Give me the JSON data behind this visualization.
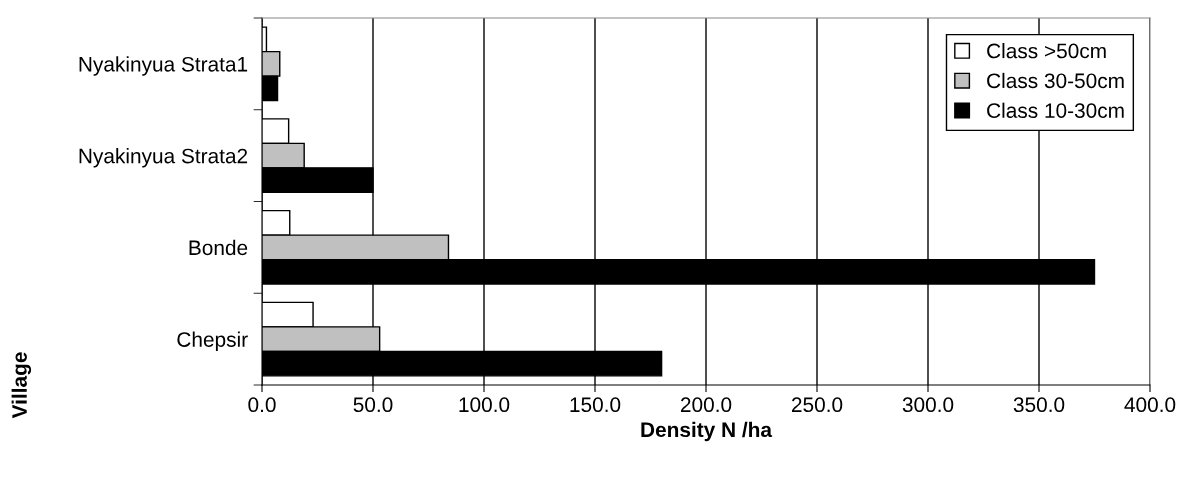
{
  "chart_data": {
    "type": "bar",
    "orientation": "horizontal",
    "xlabel": "Density N /ha",
    "ylabel": "Village",
    "categories": [
      "Nyakinyua Strata1",
      "Nyakinyua Strata2",
      "Bonde",
      "Chepsir"
    ],
    "series": [
      {
        "name": "Class >50cm",
        "color": "#ffffff",
        "values": [
          2,
          12,
          12.5,
          23
        ]
      },
      {
        "name": "Class 30-50cm",
        "color": "#c0c0c0",
        "values": [
          8,
          19,
          84,
          53
        ]
      },
      {
        "name": "Class 10-30cm",
        "color": "#000000",
        "values": [
          7,
          50,
          375,
          180
        ]
      }
    ],
    "xlim": [
      0,
      400
    ],
    "xticks": [
      {
        "value": 0,
        "label": "0.0"
      },
      {
        "value": 50,
        "label": "50.0"
      },
      {
        "value": 100,
        "label": "100.0"
      },
      {
        "value": 150,
        "label": "150.0"
      },
      {
        "value": 200,
        "label": "200.0"
      },
      {
        "value": 250,
        "label": "250.0"
      },
      {
        "value": 300,
        "label": "300.0"
      },
      {
        "value": 350,
        "label": "350.0"
      },
      {
        "value": 400,
        "label": "400.0"
      }
    ],
    "grid": "x",
    "legend": "top right"
  }
}
